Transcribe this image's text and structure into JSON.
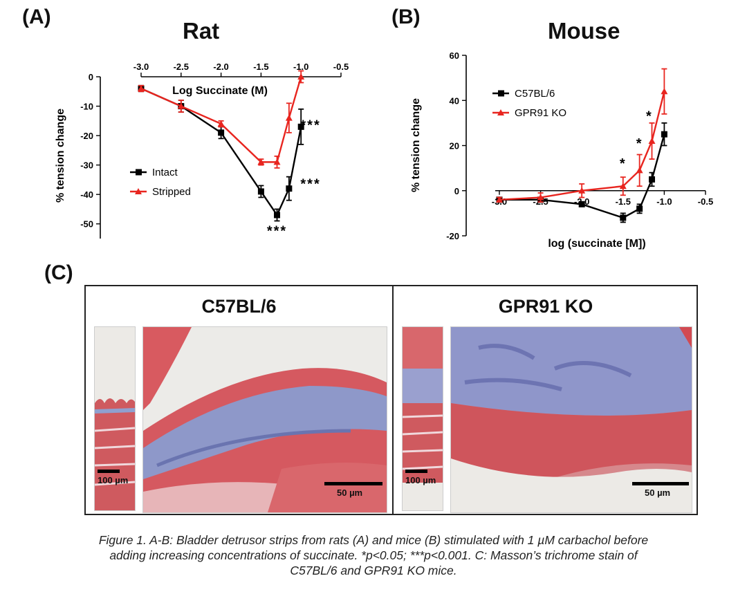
{
  "panels": {
    "a_label": "(A)",
    "b_label": "(B)",
    "c_label": "(C)"
  },
  "chart_data": [
    {
      "panel": "(A)",
      "type": "line",
      "title": "Rat",
      "xlabel": "Log Succinate (M)",
      "ylabel": "% tension change",
      "xlim": [
        -3.0,
        -0.5
      ],
      "ylim": [
        -55,
        0
      ],
      "x_ticks": [
        "-3.0",
        "-2.5",
        "-2.0",
        "-1.5",
        "-1.0",
        "-0.5"
      ],
      "y_ticks": [
        "0",
        "-10",
        "-20",
        "-30",
        "-40",
        "-50"
      ],
      "x_axis_position": "top",
      "legend_position": "lower-left",
      "series": [
        {
          "name": "Intact",
          "color": "#000000",
          "marker": "square",
          "x": [
            -3.0,
            -2.5,
            -2.0,
            -1.5,
            -1.3,
            -1.15,
            -1.0
          ],
          "y": [
            -4,
            -10,
            -19,
            -39,
            -47,
            -38,
            -17
          ],
          "err": [
            1,
            2,
            2,
            2,
            2,
            4,
            6
          ]
        },
        {
          "name": "Stripped",
          "color": "#e8251f",
          "marker": "triangle",
          "x": [
            -3.0,
            -2.5,
            -2.0,
            -1.5,
            -1.3,
            -1.15,
            -1.0
          ],
          "y": [
            -4,
            -10,
            -16,
            -29,
            -29,
            -14,
            0
          ],
          "err": [
            1,
            2,
            1,
            1,
            2,
            5,
            2
          ]
        }
      ],
      "annotations": [
        {
          "text": "***",
          "x": -1.3,
          "y": -54
        },
        {
          "text": "***",
          "x": -0.88,
          "y": -38
        },
        {
          "text": "***",
          "x": -0.88,
          "y": -18
        }
      ]
    },
    {
      "panel": "(B)",
      "type": "line",
      "title": "Mouse",
      "xlabel": "log (succinate [M])",
      "ylabel": "% tension change",
      "xlim": [
        -3.05,
        -0.5
      ],
      "ylim": [
        -20,
        60
      ],
      "x_ticks": [
        "-3.0",
        "-2.5",
        "-2.0",
        "-1.5",
        "-1.0",
        "-0.5"
      ],
      "y_ticks": [
        "60",
        "40",
        "20",
        "0",
        "-20"
      ],
      "legend_position": "upper-left",
      "series": [
        {
          "name": "C57BL/6",
          "color": "#000000",
          "marker": "square",
          "x": [
            -3.0,
            -2.5,
            -2.0,
            -1.5,
            -1.3,
            -1.15,
            -1.0
          ],
          "y": [
            -4,
            -4,
            -6,
            -12,
            -8,
            5,
            25
          ],
          "err": [
            1,
            1,
            1,
            2,
            2,
            3,
            5
          ]
        },
        {
          "name": "GPR91 KO",
          "color": "#e8251f",
          "marker": "triangle",
          "x": [
            -3.0,
            -2.5,
            -2.0,
            -1.5,
            -1.3,
            -1.15,
            -1.0
          ],
          "y": [
            -4,
            -3,
            0,
            2,
            9,
            22,
            44
          ],
          "err": [
            1,
            2,
            3,
            4,
            7,
            8,
            10
          ]
        }
      ],
      "annotations": [
        {
          "text": "*",
          "x": -1.5,
          "y": 10
        },
        {
          "text": "*",
          "x": -1.3,
          "y": 19
        },
        {
          "text": "*",
          "x": -1.18,
          "y": 31
        }
      ]
    }
  ],
  "histology": {
    "left_title": "C57BL/6",
    "right_title": "GPR91 KO",
    "left_small_scale": "100 µm",
    "left_large_scale": "50 µm",
    "right_small_scale": "100 µm",
    "right_large_scale": "50 µm"
  },
  "caption": {
    "line1": "Figure 1. A-B: Bladder detrusor strips from rats (A) and mice (B) stimulated with 1 µM carbachol before",
    "line2": "adding increasing concentrations of succinate. *p<0.05; ***p<0.001. C: Masson’s trichrome stain of",
    "line3": "C57BL/6 and GPR91 KO mice."
  }
}
